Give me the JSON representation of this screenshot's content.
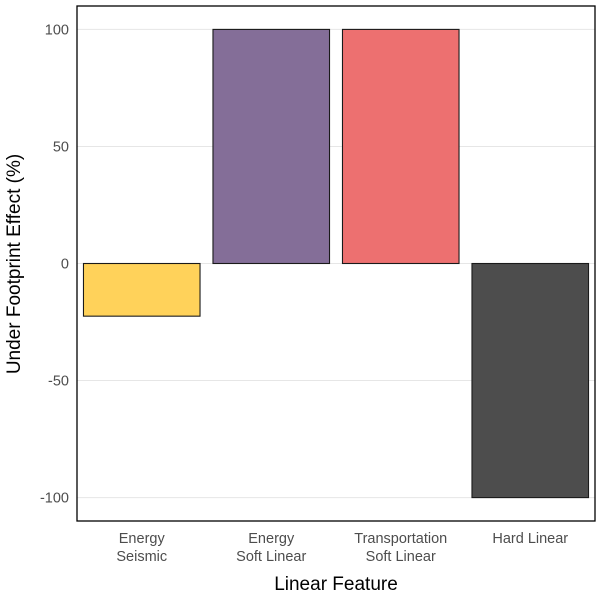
{
  "chart_data": {
    "type": "bar",
    "xlabel": "Linear Feature",
    "ylabel": "Under Footprint Effect (%)",
    "ylim": [
      -110,
      110
    ],
    "yticks": [
      -100,
      -50,
      0,
      50,
      100
    ],
    "grid": true,
    "categories": [
      [
        "Energy",
        "Seismic"
      ],
      [
        "Energy",
        "Soft Linear"
      ],
      [
        "Transportation",
        "Soft Linear"
      ],
      [
        "Hard Linear"
      ]
    ],
    "values": [
      -22.5,
      100,
      100,
      -100
    ],
    "colors": [
      "#FFD25A",
      "#846E98",
      "#ED7070",
      "#4D4D4D"
    ]
  }
}
